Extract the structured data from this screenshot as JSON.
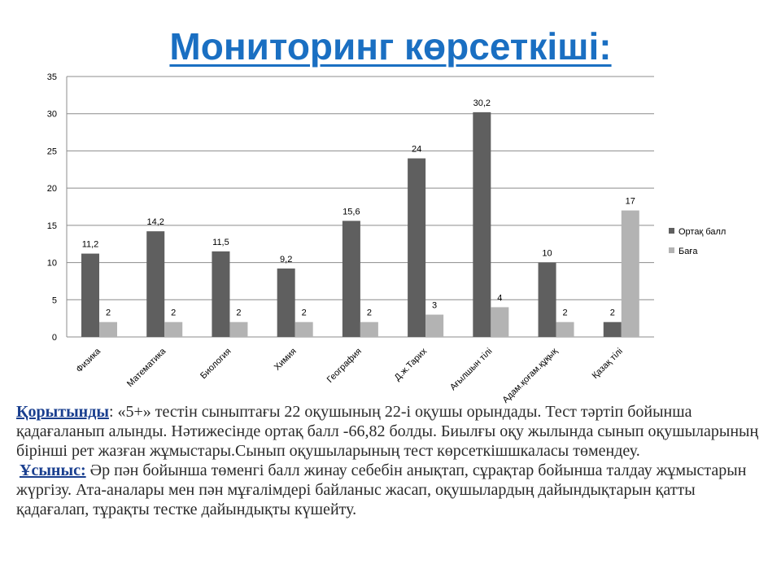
{
  "title": "Мониторинг көрсеткіші:",
  "chart_data": {
    "type": "bar",
    "categories": [
      "Физика",
      "Математика",
      "Биология",
      "Химия",
      "География",
      "Д.ж.Тарих",
      "Ағылшын тілі",
      "Адам.қоғам.құқық",
      "Қазақ тілі"
    ],
    "series": [
      {
        "name": "Ортақ балл",
        "values": [
          11.2,
          14.2,
          11.5,
          9.2,
          15.6,
          24,
          30.2,
          10,
          2
        ],
        "labels": [
          "11,2",
          "14,2",
          "11,5",
          "9,2",
          "15,6",
          "24",
          "30,2",
          "10",
          "2"
        ],
        "color": "#5f5f5f"
      },
      {
        "name": "Баға",
        "values": [
          2,
          2,
          2,
          2,
          2,
          3,
          4,
          2,
          17
        ],
        "labels": [
          "2",
          "2",
          "2",
          "2",
          "2",
          "3",
          "4",
          "2",
          "17"
        ],
        "color": "#b3b3b3"
      }
    ],
    "ylim": [
      0,
      35
    ],
    "yticks": [
      0,
      5,
      10,
      15,
      20,
      25,
      30,
      35
    ],
    "grid": true,
    "legend": "right"
  },
  "conclusion": {
    "heading": "Қорытынды",
    "text": ":   «5+» тестін  сыныптағы 22 оқушының  22-і оқушы орындады. Тест тәртіп бойынша қадағаланып  алынды. Нәтижесінде ортақ балл -66,82 болды. Биылғы оқу жылында сынып оқушыларының бірінші рет жазған жұмыстары.Сынып оқушыларының тест көрсеткішшкаласы төмендеу.",
    "suggestion_heading": "Ұсыныс:",
    "suggestion_text": "  Әр пән бойынша төменгі балл жинау себебін анықтап, сұрақтар бойынша талдау жұмыстарын жүргізу. Ата-аналары мен пән мұғалімдері байланыс жасап, оқушылардың дайындықтарын қатты қадағалап, тұрақты  тестке дайындықты күшейту."
  }
}
